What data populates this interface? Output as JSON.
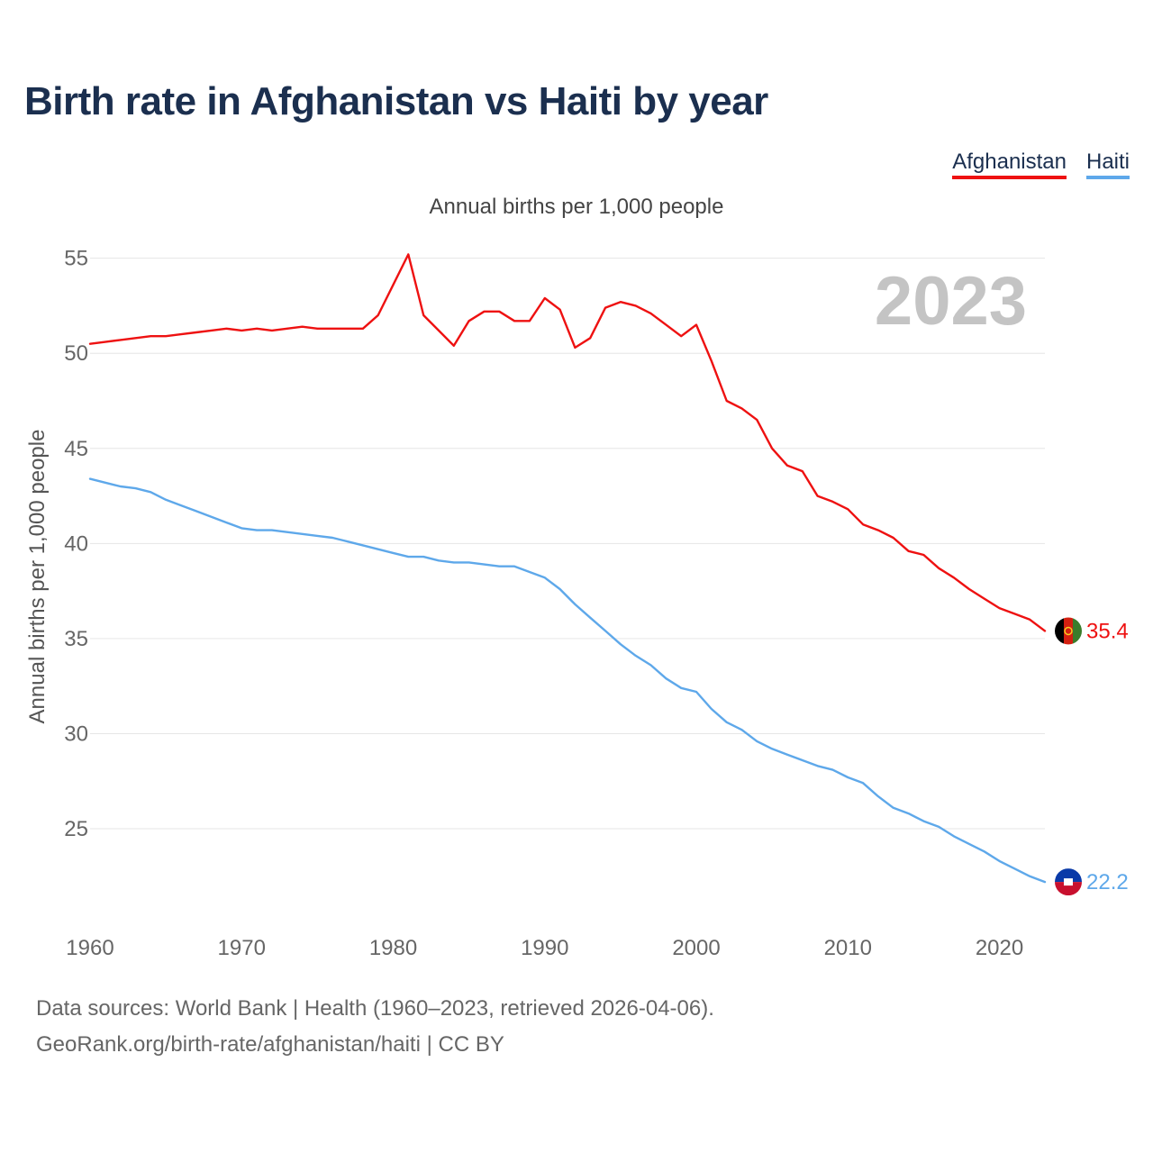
{
  "title": "Birth rate in Afghanistan vs Haiti by year",
  "subtitle": "Annual births per 1,000 people",
  "legend": [
    {
      "label": "Afghanistan",
      "color": "#ee1111"
    },
    {
      "label": "Haiti",
      "color": "#5ea8ea"
    }
  ],
  "year_watermark": "2023",
  "source_line1": "Data sources: World Bank | Health (1960–2023, retrieved 2026-04-06).",
  "source_line2": "GeoRank.org/birth-rate/afghanistan/haiti | CC BY",
  "chart_data": {
    "type": "line",
    "title": "Birth rate in Afghanistan vs Haiti by year",
    "subtitle": "Annual births per 1,000 people",
    "xlabel": "",
    "ylabel": "Annual births per 1,000 people",
    "xlim": [
      1960,
      2023
    ],
    "ylim": [
      20.5,
      56.5
    ],
    "x_ticks": [
      1960,
      1970,
      1980,
      1990,
      2000,
      2010,
      2020
    ],
    "y_ticks": [
      25,
      30,
      35,
      40,
      45,
      50,
      55
    ],
    "grid": true,
    "legend_position": "top-right",
    "x": [
      1960,
      1961,
      1962,
      1963,
      1964,
      1965,
      1966,
      1967,
      1968,
      1969,
      1970,
      1971,
      1972,
      1973,
      1974,
      1975,
      1976,
      1977,
      1978,
      1979,
      1980,
      1981,
      1982,
      1983,
      1984,
      1985,
      1986,
      1987,
      1988,
      1989,
      1990,
      1991,
      1992,
      1993,
      1994,
      1995,
      1996,
      1997,
      1998,
      1999,
      2000,
      2001,
      2002,
      2003,
      2004,
      2005,
      2006,
      2007,
      2008,
      2009,
      2010,
      2011,
      2012,
      2013,
      2014,
      2015,
      2016,
      2017,
      2018,
      2019,
      2020,
      2021,
      2022,
      2023
    ],
    "series": [
      {
        "name": "Afghanistan",
        "color": "#ee1111",
        "end_label": "35.4",
        "values": [
          50.5,
          50.6,
          50.7,
          50.8,
          50.9,
          50.9,
          51.0,
          51.1,
          51.2,
          51.3,
          51.2,
          51.3,
          51.2,
          51.3,
          51.4,
          51.3,
          51.3,
          51.3,
          51.3,
          52.0,
          53.6,
          55.2,
          52.0,
          51.2,
          50.4,
          51.7,
          52.2,
          52.2,
          51.7,
          51.7,
          52.9,
          52.3,
          50.3,
          50.8,
          52.4,
          52.7,
          52.5,
          52.1,
          51.5,
          50.9,
          51.5,
          49.6,
          47.5,
          47.1,
          46.5,
          45.0,
          44.1,
          43.8,
          42.5,
          42.2,
          41.8,
          41.0,
          40.7,
          40.3,
          39.6,
          39.4,
          38.7,
          38.2,
          37.6,
          37.1,
          36.6,
          36.3,
          36.0,
          35.4
        ]
      },
      {
        "name": "Haiti",
        "color": "#5ea8ea",
        "end_label": "22.2",
        "values": [
          43.4,
          43.2,
          43.0,
          42.9,
          42.7,
          42.3,
          42.0,
          41.7,
          41.4,
          41.1,
          40.8,
          40.7,
          40.7,
          40.6,
          40.5,
          40.4,
          40.3,
          40.1,
          39.9,
          39.7,
          39.5,
          39.3,
          39.3,
          39.1,
          39.0,
          39.0,
          38.9,
          38.8,
          38.8,
          38.5,
          38.2,
          37.6,
          36.8,
          36.1,
          35.4,
          34.7,
          34.1,
          33.6,
          32.9,
          32.4,
          32.2,
          31.3,
          30.6,
          30.2,
          29.6,
          29.2,
          28.9,
          28.6,
          28.3,
          28.1,
          27.7,
          27.4,
          26.7,
          26.1,
          25.8,
          25.4,
          25.1,
          24.6,
          24.2,
          23.8,
          23.3,
          22.9,
          22.5,
          22.2
        ]
      }
    ]
  }
}
